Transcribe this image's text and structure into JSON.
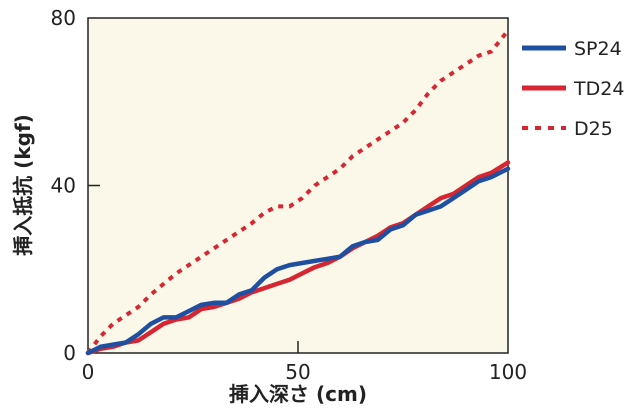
{
  "chart_data": {
    "type": "line",
    "xlabel": "挿入深さ (cm)",
    "ylabel": "挿入抵抗 (kgf)",
    "xlim": [
      0,
      100
    ],
    "ylim": [
      0,
      80
    ],
    "xticks": [
      0,
      50,
      100
    ],
    "yticks": [
      40,
      80
    ],
    "grid": false,
    "legend_position": "right-top",
    "plot_background": "#fbf8ea",
    "series": [
      {
        "name": "SP24",
        "color": "#1e4fa0",
        "style": "solid",
        "x": [
          0,
          3,
          6,
          9,
          12,
          15,
          18,
          21,
          24,
          27,
          30,
          33,
          36,
          39,
          42,
          45,
          48,
          51,
          54,
          57,
          60,
          63,
          66,
          69,
          72,
          75,
          78,
          81,
          84,
          87,
          90,
          93,
          96,
          100
        ],
        "y": [
          0,
          1.5,
          2,
          2.5,
          4.5,
          7,
          8.5,
          8.5,
          10,
          11.5,
          12,
          12,
          14,
          15,
          18,
          20,
          21,
          21.5,
          22,
          22.5,
          23,
          25.5,
          26.5,
          27,
          29.5,
          30.5,
          33,
          34,
          35,
          37,
          39,
          41,
          42,
          44
        ]
      },
      {
        "name": "TD24",
        "color": "#d62631",
        "style": "solid",
        "x": [
          0,
          3,
          6,
          9,
          12,
          15,
          18,
          21,
          24,
          27,
          30,
          33,
          36,
          39,
          42,
          45,
          48,
          51,
          54,
          57,
          60,
          63,
          66,
          69,
          72,
          75,
          78,
          81,
          84,
          87,
          90,
          93,
          96,
          100
        ],
        "y": [
          0,
          1,
          1.5,
          2.5,
          3,
          5,
          7,
          8,
          8.5,
          10.5,
          11,
          12,
          13,
          14.5,
          15.5,
          16.5,
          17.5,
          19,
          20.5,
          21.5,
          23,
          25,
          26.5,
          28,
          30,
          31,
          33,
          35,
          37,
          38,
          40,
          42,
          43,
          45.5
        ]
      },
      {
        "name": "D25",
        "color": "#d62631",
        "style": "dotted",
        "x": [
          0,
          3,
          6,
          9,
          12,
          15,
          18,
          21,
          24,
          27,
          30,
          33,
          36,
          39,
          42,
          45,
          48,
          51,
          54,
          57,
          60,
          63,
          66,
          69,
          72,
          75,
          78,
          81,
          84,
          87,
          90,
          93,
          96,
          100
        ],
        "y": [
          0,
          4,
          7,
          9,
          11,
          14,
          16.5,
          19,
          21,
          23,
          25,
          27,
          29,
          31,
          33.5,
          35,
          35,
          37,
          40,
          42,
          44,
          47,
          49,
          51,
          53,
          55,
          58,
          62,
          65,
          67,
          69,
          71,
          72,
          77
        ]
      }
    ]
  }
}
